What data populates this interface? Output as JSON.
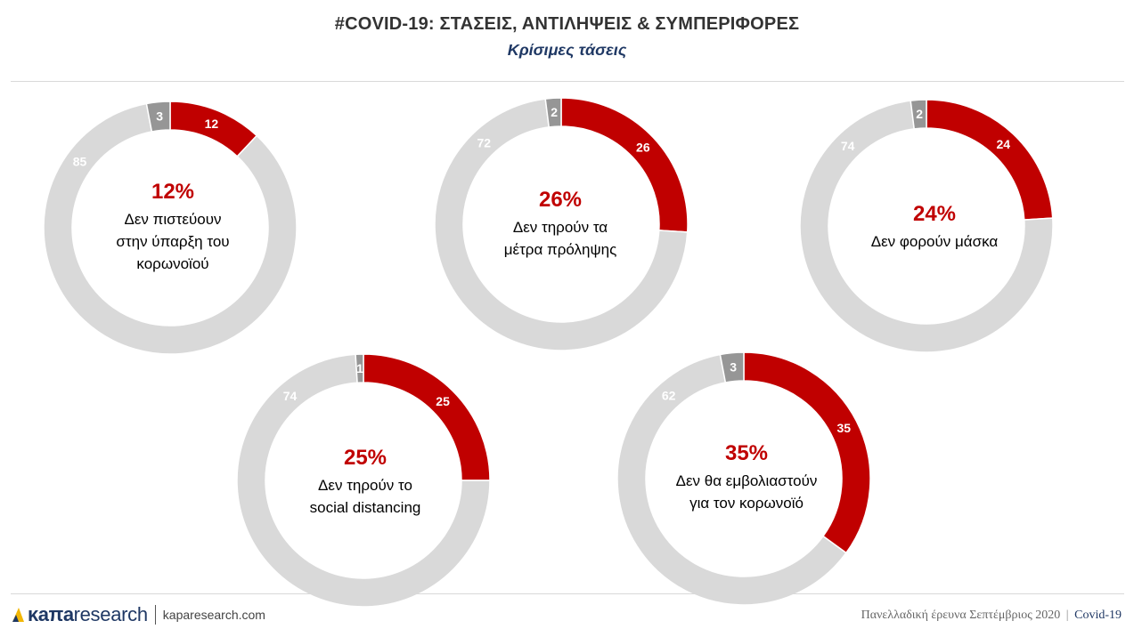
{
  "header": {
    "title": "#COVID-19: ΣΤΑΣΕΙΣ, ΑΝΤΙΛΗΨΕΙΣ & ΣΥΜΠΕΡΙΦΟΡΕΣ",
    "subtitle": "Κρίσιμες τάσεις"
  },
  "colors": {
    "accent": "#c00000",
    "neutral": "#d9d9d9",
    "other": "#969696",
    "title": "#333333",
    "subtitle": "#1f3864"
  },
  "chart_data": [
    {
      "type": "pie",
      "title": "12%",
      "description": [
        "Δεν πιστεύουν",
        "στην ύπαρξη του",
        "κορωνοϊού"
      ],
      "categories": [
        "red",
        "gray",
        "other"
      ],
      "values": [
        12,
        85,
        3
      ]
    },
    {
      "type": "pie",
      "title": "26%",
      "description": [
        "Δεν τηρούν τα",
        "μέτρα πρόληψης"
      ],
      "categories": [
        "red",
        "gray",
        "other"
      ],
      "values": [
        26,
        72,
        2
      ]
    },
    {
      "type": "pie",
      "title": "24%",
      "description": [
        "Δεν φορούν μάσκα"
      ],
      "categories": [
        "red",
        "gray",
        "other"
      ],
      "values": [
        24,
        74,
        2
      ]
    },
    {
      "type": "pie",
      "title": "25%",
      "description": [
        "Δεν τηρούν το",
        "social distancing"
      ],
      "categories": [
        "red",
        "gray",
        "other"
      ],
      "values": [
        25,
        74,
        1
      ]
    },
    {
      "type": "pie",
      "title": "35%",
      "description": [
        "Δεν θα εμβολιαστούν",
        "για τον κορωνοϊό"
      ],
      "categories": [
        "red",
        "gray",
        "other"
      ],
      "values": [
        35,
        62,
        3
      ]
    }
  ],
  "footer": {
    "logo_kapa": "κaπa",
    "logo_research": "research",
    "url": "kaparesearch.com",
    "survey": "Πανελλαδική έρευνα Σεπτέμβριος 2020",
    "separator": "|",
    "tag": "Covid-19"
  }
}
